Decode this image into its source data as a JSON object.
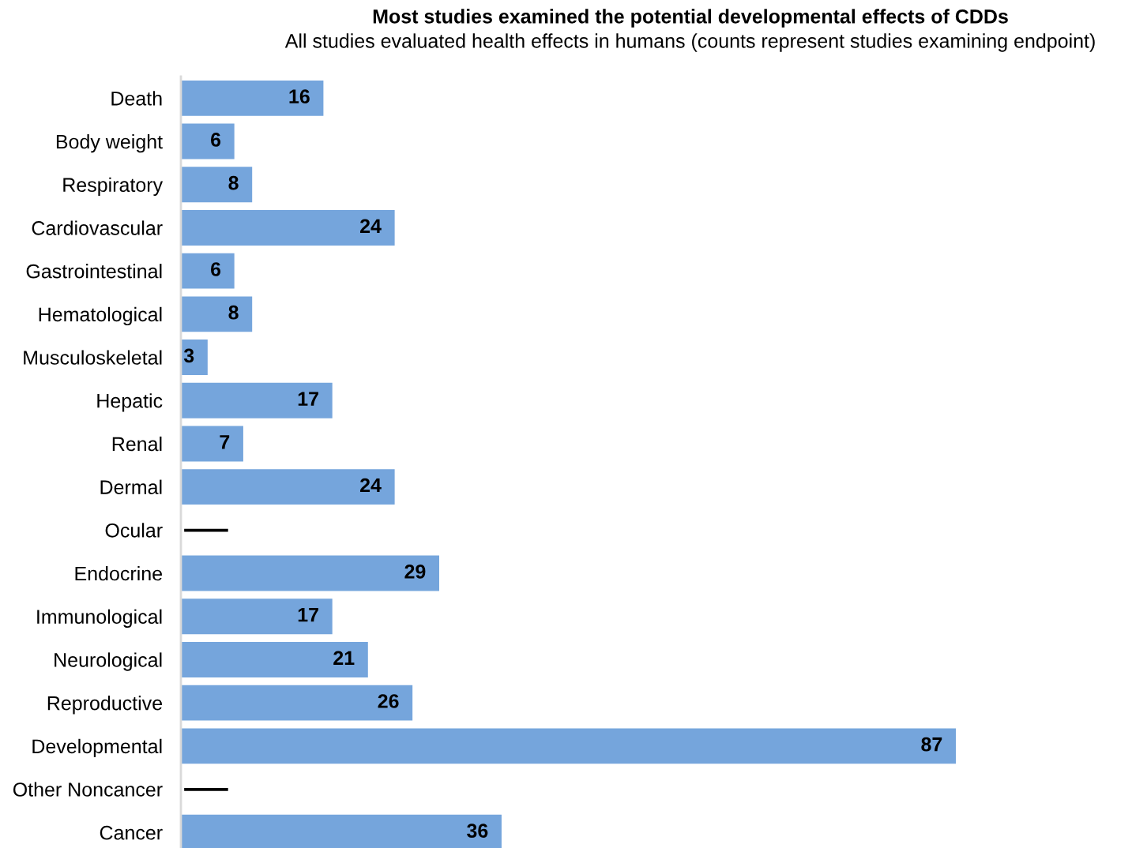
{
  "chart_data": {
    "type": "bar",
    "orientation": "horizontal",
    "title": "Most studies examined the potential developmental effects of CDDs",
    "subtitle": "All studies evaluated health effects in humans (counts represent studies examining endpoint)",
    "categories": [
      "Death",
      "Body weight",
      "Respiratory",
      "Cardiovascular",
      "Gastrointestinal",
      "Hematological",
      "Musculoskeletal",
      "Hepatic",
      "Renal",
      "Dermal",
      "Ocular",
      "Endocrine",
      "Immunological",
      "Neurological",
      "Reproductive",
      "Developmental",
      "Other Noncancer",
      "Cancer"
    ],
    "values": [
      16,
      6,
      8,
      24,
      6,
      8,
      3,
      17,
      7,
      24,
      null,
      29,
      17,
      21,
      26,
      87,
      null,
      36
    ],
    "value_labels": [
      "16",
      "6",
      "8",
      "24",
      "6",
      "8",
      "3",
      "17",
      "7",
      "24",
      "—",
      "29",
      "17",
      "21",
      "26",
      "87",
      "—",
      "36"
    ],
    "color": "#75a5dc",
    "tick_labels": "y"
  }
}
